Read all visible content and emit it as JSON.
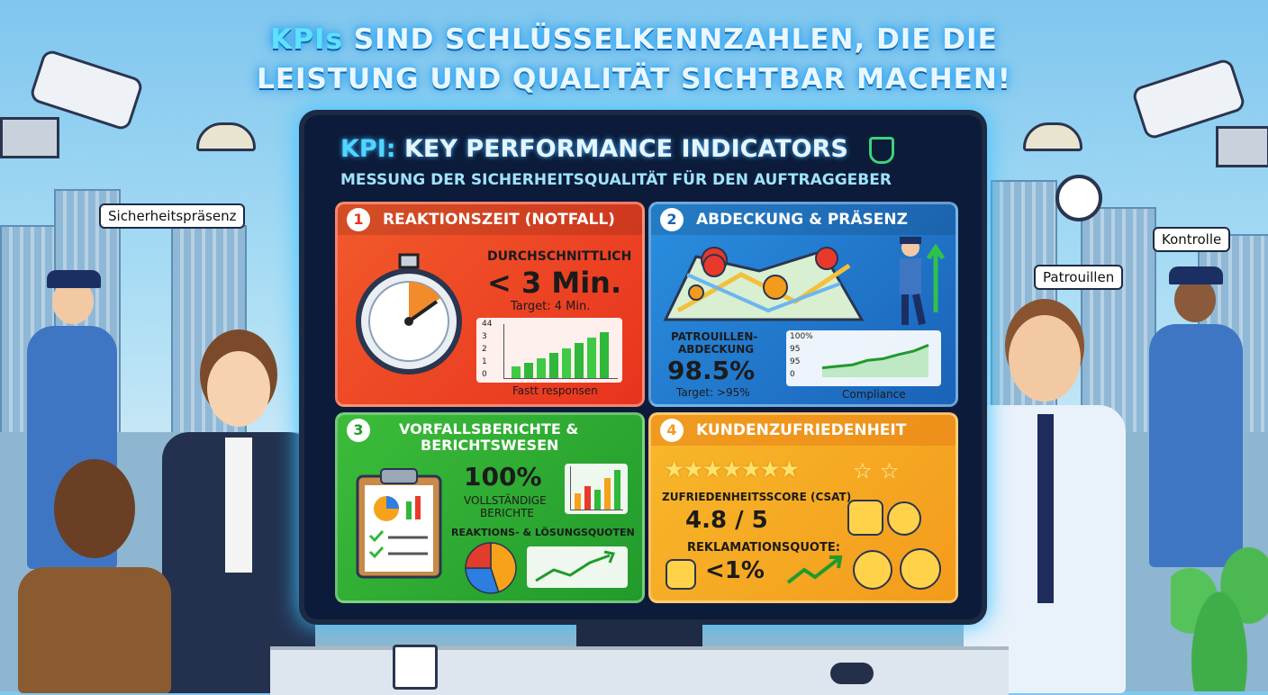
{
  "headline": {
    "part1": "KPIs",
    "part2": " SIND SCHLÜSSELKENNZAHLEN, DIE DIE",
    "line2": "LEISTUNG UND QUALITÄT SICHTBAR MACHEN!"
  },
  "bubbles": {
    "left": "Sicherheitspräsenz",
    "right_patrol": "Patrouillen",
    "right_control": "Kontrolle"
  },
  "monitor": {
    "title_kpi": "KPI:",
    "title_rest": " KEY PERFORMANCE INDICATORS",
    "subtitle": "MESSUNG DER SICHERHEITSQUALITÄT FÜR DEN AUFTRAGGEBER",
    "shield_icon": "shield-check-icon"
  },
  "panels": {
    "p1": {
      "num": "1",
      "title": "REAKTIONSZEIT (NOTFALL)",
      "label": "DURCHSCHNITTLICH",
      "value": "< 3 Min.",
      "target": "Target: 4 Min.",
      "icon": "stopwatch-icon",
      "chart_caption": "Fastt responsen"
    },
    "p2": {
      "num": "2",
      "title": "ABDECKUNG & PRÄSENZ",
      "label_1": "PATROUILLEN-",
      "label_2": "ABDECKUNG",
      "value": "98.5%",
      "target": "Target: >95%",
      "icon": "map-pins-icon",
      "chart_caption": "Compliance"
    },
    "p3": {
      "num": "3",
      "title_1": "VORFALLSBERICHTE &",
      "title_2": "BERICHTSWESEN",
      "value": "100%",
      "label_1": "VOLLSTÄNDIGE",
      "label_2": "BERICHTE",
      "quotes": "REAKTIONS- & LÖSUNGSQUOTEN",
      "icon": "clipboard-icon"
    },
    "p4": {
      "num": "4",
      "title": "KUNDENZUFRIEDENHEIT",
      "stars": "★★★★★★★",
      "stars_extra": "☆ ☆",
      "csat_label": "ZUFRIEDENHEITSSCORE (CSAT)",
      "csat_value": "4.8 / 5",
      "complaint_label": "REKLAMATIONSQUOTE:",
      "complaint_value": "<1%",
      "icons": [
        "thumbs-up-icon",
        "smiley-icon",
        "sad-face-icon"
      ]
    }
  },
  "chart_data": [
    {
      "type": "bar",
      "yticks": [
        "44",
        "3",
        "2",
        "1",
        "0"
      ],
      "values": [
        1,
        1.3,
        1.7,
        2.2,
        2.6,
        3.1,
        3.5,
        4.0
      ],
      "xlabel": "Fastt responsen"
    },
    {
      "type": "line",
      "yticks": [
        "100%",
        "95",
        "95",
        "0"
      ],
      "values": [
        20,
        24,
        28,
        40,
        44,
        55,
        64,
        80
      ],
      "xlabel": "Compliance"
    },
    {
      "type": "bar",
      "values": [
        2,
        3,
        2.5,
        4,
        5
      ],
      "xlabel": ""
    },
    {
      "type": "pie",
      "values": [
        45,
        30,
        25
      ],
      "colors": [
        "#f6a21b",
        "#2e7de0",
        "#e23c2c"
      ]
    }
  ]
}
